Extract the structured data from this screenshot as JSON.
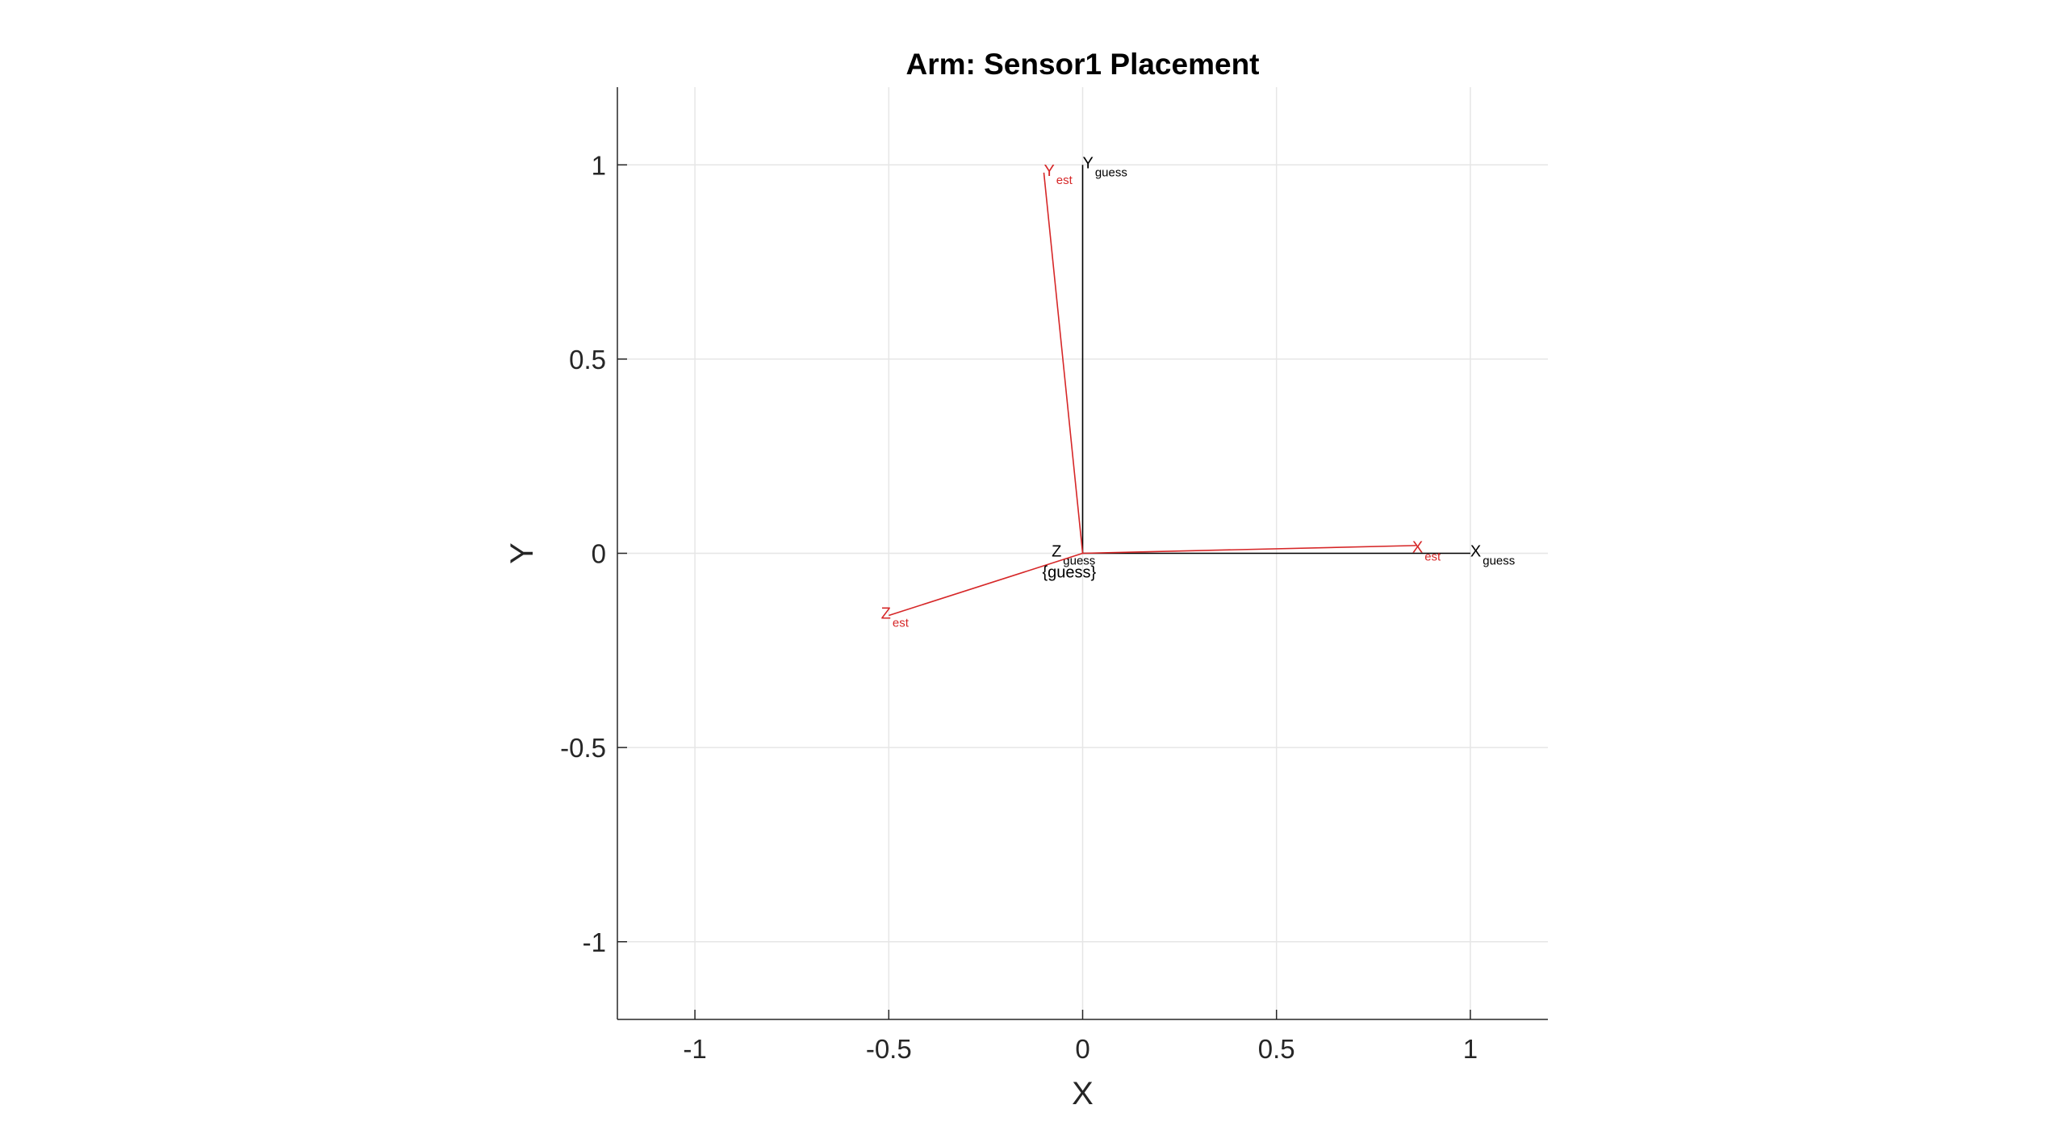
{
  "chart_data": {
    "type": "line",
    "title": "Arm: Sensor1 Placement",
    "xlabel": "X",
    "ylabel": "Y",
    "xlim": [
      -1.2,
      1.2
    ],
    "ylim": [
      -1.2,
      1.2
    ],
    "xticks": [
      -1,
      -0.5,
      0,
      0.5,
      1
    ],
    "yticks": [
      -1,
      -0.5,
      0,
      0.5,
      1
    ],
    "xtick_labels": [
      "-1",
      "-0.5",
      "0",
      "0.5",
      "1"
    ],
    "ytick_labels": [
      "-1",
      "-0.5",
      "0",
      "0.5",
      "1"
    ],
    "grid": true,
    "legend": "none",
    "colors": {
      "guess": "#000000",
      "est": "#d62728",
      "grid": "#e6e6e6",
      "axis": "#262626"
    },
    "series": [
      {
        "group": "guess",
        "vectors": [
          {
            "axis": "X",
            "sub": "guess",
            "from": [
              0,
              0
            ],
            "to": [
              1.0,
              0.0
            ],
            "label_at": [
              1.0,
              0.0
            ]
          },
          {
            "axis": "Y",
            "sub": "guess",
            "from": [
              0,
              0
            ],
            "to": [
              0.0,
              1.0
            ],
            "label_at": [
              0.0,
              1.0
            ]
          },
          {
            "axis": "Z",
            "sub": "guess",
            "from": [
              0,
              0
            ],
            "to": [
              0.0,
              0.0
            ],
            "label_at": [
              -0.08,
              0.0
            ]
          }
        ]
      },
      {
        "group": "est",
        "vectors": [
          {
            "axis": "X",
            "sub": "est",
            "from": [
              0,
              0
            ],
            "to": [
              0.86,
              0.02
            ],
            "label_at": [
              0.85,
              0.01
            ]
          },
          {
            "axis": "Y",
            "sub": "est",
            "from": [
              0,
              0
            ],
            "to": [
              -0.1,
              0.98
            ],
            "label_at": [
              -0.1,
              0.98
            ]
          },
          {
            "axis": "Z",
            "sub": "est",
            "from": [
              0,
              0
            ],
            "to": [
              -0.5,
              -0.16
            ],
            "label_at": [
              -0.52,
              -0.16
            ]
          }
        ]
      }
    ],
    "annotations": [
      "{guess}"
    ]
  }
}
